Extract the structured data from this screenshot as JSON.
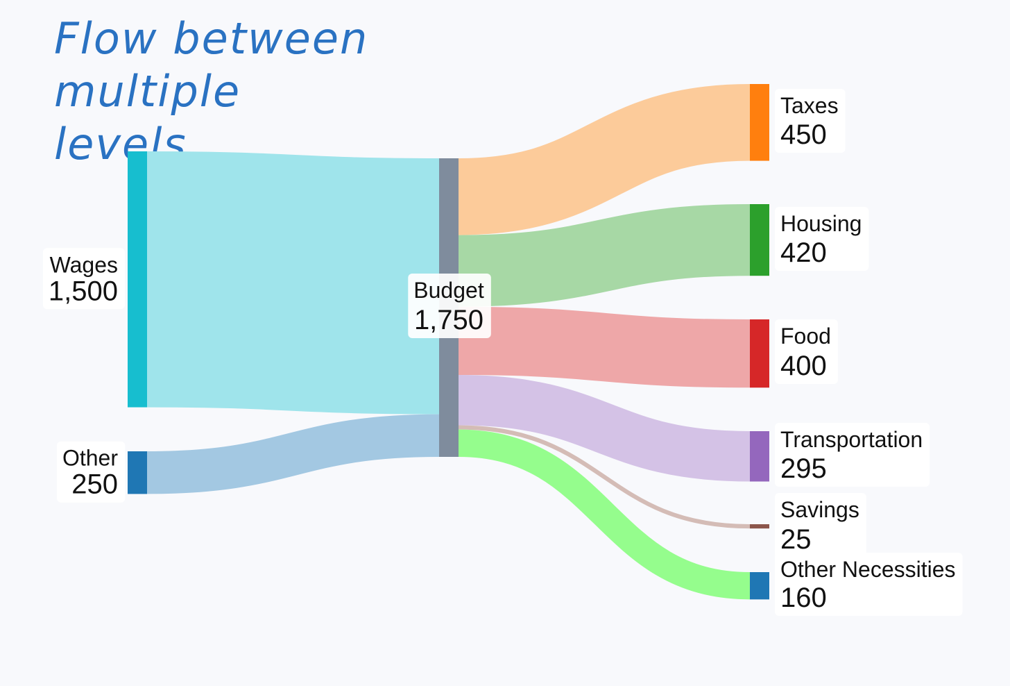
{
  "title": "Flow between multiple levels",
  "chart_data": {
    "type": "sankey",
    "nodes": [
      {
        "id": "wages",
        "name": "Wages",
        "value": 1500,
        "value_label": "1,500",
        "color": "#17becf",
        "column": 0
      },
      {
        "id": "other",
        "name": "Other",
        "value": 250,
        "value_label": "250",
        "color": "#1f77b4",
        "column": 0
      },
      {
        "id": "budget",
        "name": "Budget",
        "value": 1750,
        "value_label": "1,750",
        "color": "#7f8c9d",
        "column": 1
      },
      {
        "id": "taxes",
        "name": "Taxes",
        "value": 450,
        "value_label": "450",
        "color": "#ff7f0e",
        "column": 2
      },
      {
        "id": "housing",
        "name": "Housing",
        "value": 420,
        "value_label": "420",
        "color": "#2ca02c",
        "column": 2
      },
      {
        "id": "food",
        "name": "Food",
        "value": 400,
        "value_label": "400",
        "color": "#d62728",
        "column": 2
      },
      {
        "id": "transportation",
        "name": "Transportation",
        "value": 295,
        "value_label": "295",
        "color": "#9467bd",
        "column": 2
      },
      {
        "id": "savings",
        "name": "Savings",
        "value": 25,
        "value_label": "25",
        "color": "#8c564b",
        "column": 2
      },
      {
        "id": "other_necessities",
        "name": "Other Necessities",
        "value": 160,
        "value_label": "160",
        "color": "#1f77b4",
        "column": 2
      }
    ],
    "links": [
      {
        "source": "wages",
        "target": "budget",
        "value": 1500,
        "color": "#9fe4eb"
      },
      {
        "source": "other",
        "target": "budget",
        "value": 250,
        "color": "#a3c8e2"
      },
      {
        "source": "budget",
        "target": "taxes",
        "value": 450,
        "color": "#fccb9a"
      },
      {
        "source": "budget",
        "target": "housing",
        "value": 420,
        "color": "#a7d8a5"
      },
      {
        "source": "budget",
        "target": "food",
        "value": 400,
        "color": "#eea7a8"
      },
      {
        "source": "budget",
        "target": "transportation",
        "value": 295,
        "color": "#d4c2e6"
      },
      {
        "source": "budget",
        "target": "savings",
        "value": 25,
        "color": "#d4bcb6"
      },
      {
        "source": "budget",
        "target": "other_necessities",
        "value": 160,
        "color": "#95fd8d"
      }
    ]
  }
}
